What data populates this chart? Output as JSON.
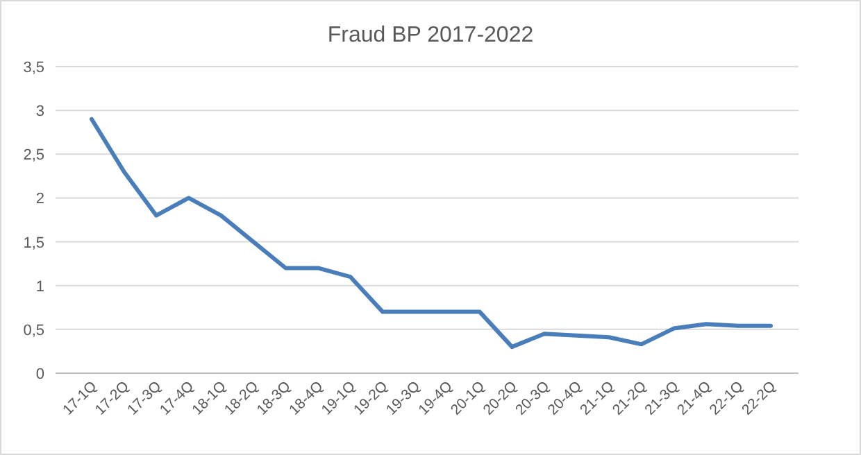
{
  "chart_data": {
    "type": "line",
    "title": "Fraud BP 2017-2022",
    "categories": [
      "17-1Q",
      "17-2Q",
      "17-3Q",
      "17-4Q",
      "18-1Q",
      "18-2Q",
      "18-3Q",
      "18-4Q",
      "19-1Q",
      "19-2Q",
      "19-3Q",
      "19-4Q",
      "20-1Q",
      "20-2Q",
      "20-3Q",
      "20-4Q",
      "21-1Q",
      "21-2Q",
      "21-3Q",
      "21-4Q",
      "22-1Q",
      "22-2Q"
    ],
    "series": [
      {
        "color": "#4a7ebb",
        "values": [
          2.9,
          2.3,
          1.8,
          2.0,
          1.8,
          1.5,
          1.2,
          1.2,
          1.1,
          0.7,
          0.7,
          0.7,
          0.7,
          0.3,
          0.45,
          0.43,
          0.41,
          0.33,
          0.51,
          0.56,
          0.54,
          0.54
        ]
      }
    ],
    "ylim": [
      0,
      3.5
    ],
    "yticks": [
      0,
      {
        "value": 0.5,
        "label": "0,5"
      },
      1,
      {
        "value": 1.5,
        "label": "1,5"
      },
      2,
      {
        "value": 2.5,
        "label": "2,5"
      },
      3,
      {
        "value": 3.5,
        "label": "3,5"
      }
    ],
    "grid": "y",
    "marker": "none",
    "line_style": "solid"
  }
}
